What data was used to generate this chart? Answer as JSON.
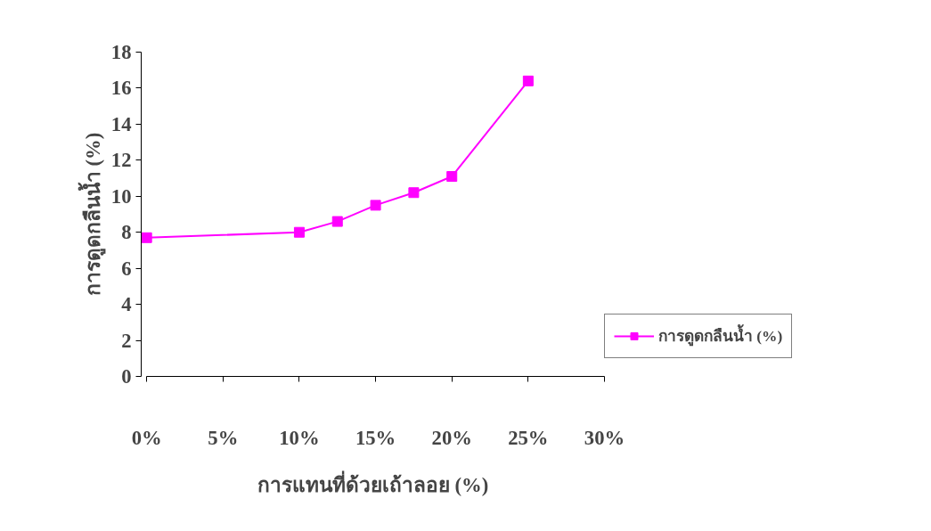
{
  "chart_data": {
    "type": "line",
    "xlabel": "การแทนที่ด้วยเถ้าลอย (%)",
    "ylabel": "การดูดกลืนน้ำ (%)",
    "x": [
      0,
      10,
      12.5,
      15,
      17.5,
      20,
      25
    ],
    "series": [
      {
        "name": "การดูดกลืนน้ำ (%)",
        "color": "#ff00ff",
        "values": [
          7.7,
          8.0,
          8.6,
          9.5,
          10.2,
          11.1,
          16.4
        ]
      }
    ],
    "xlim": [
      0,
      30
    ],
    "xticks": [
      {
        "value": 0,
        "label": "0%"
      },
      {
        "value": 5,
        "label": "5%"
      },
      {
        "value": 10,
        "label": "10%"
      },
      {
        "value": 15,
        "label": "15%"
      },
      {
        "value": 20,
        "label": "20%"
      },
      {
        "value": 25,
        "label": "25%"
      },
      {
        "value": 30,
        "label": "30%"
      }
    ],
    "ylim": [
      0,
      18
    ],
    "yticks": [
      0,
      2,
      4,
      6,
      8,
      10,
      12,
      14,
      16,
      18
    ],
    "grid": false,
    "legend": "right",
    "marker": "square",
    "line_style": "solid"
  }
}
